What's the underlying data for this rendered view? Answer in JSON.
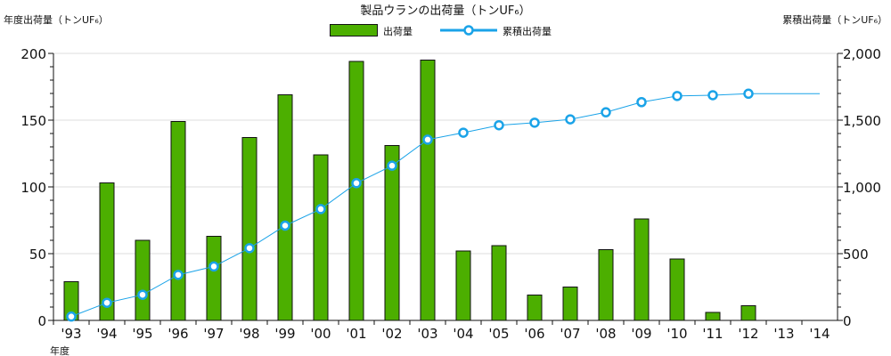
{
  "chart_data": {
    "type": "bar+line",
    "title": "製品ウランの出荷量（トンUF₆）",
    "ylabel_left": "年度出荷量（トンUF₆）",
    "ylabel_right": "累積出荷量（トンUF₆）",
    "xlabel": "年度",
    "categories": [
      "'93",
      "'94",
      "'95",
      "'96",
      "'97",
      "'98",
      "'99",
      "'00",
      "'01",
      "'02",
      "'03",
      "'04",
      "'05",
      "'06",
      "'07",
      "'08",
      "'09",
      "'10",
      "'11",
      "'12",
      "'13",
      "'14"
    ],
    "series": [
      {
        "name": "出荷量",
        "type": "bar",
        "axis": "left",
        "color": "#4caf00",
        "values": [
          29,
          103,
          60,
          149,
          63,
          137,
          169,
          124,
          194,
          131,
          195,
          52,
          56,
          19,
          25,
          53,
          76,
          46,
          6,
          11,
          0,
          0
        ]
      },
      {
        "name": "累積出荷量",
        "type": "line",
        "axis": "right",
        "color": "#1aa3e8",
        "values": [
          29,
          132,
          192,
          341,
          404,
          541,
          710,
          834,
          1028,
          1159,
          1354,
          1406,
          1462,
          1481,
          1506,
          1559,
          1635,
          1681,
          1687,
          1698,
          1698,
          1698
        ]
      }
    ],
    "ylim_left": [
      0,
      200
    ],
    "yticks_left": [
      "0",
      "50",
      "100",
      "150",
      "200"
    ],
    "ylim_right": [
      0,
      2000
    ],
    "yticks_right": [
      "0",
      "500",
      "1,000",
      "1,500",
      "2,000"
    ],
    "grid": true,
    "legend": "top-center"
  }
}
